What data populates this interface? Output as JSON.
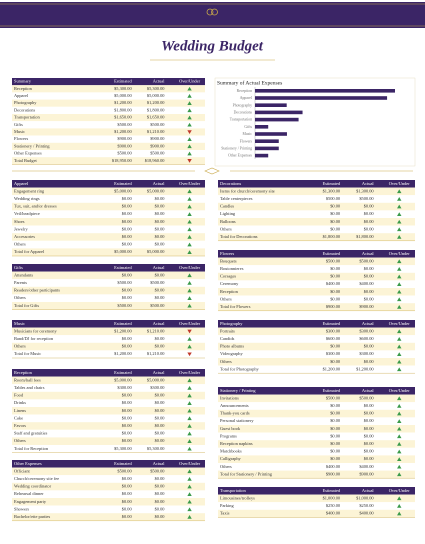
{
  "title": "Wedding Budget",
  "summary": {
    "columns": [
      "Summary",
      "Estimated",
      "Actual",
      "Over/Under"
    ],
    "rows": [
      [
        "Reception",
        "$5,300.00",
        "$5,300.00"
      ],
      [
        "Apparel",
        "$5,000.00",
        "$5,000.00"
      ],
      [
        "Photography",
        "$1,200.00",
        "$1,200.00"
      ],
      [
        "Decorations",
        "$1,800.00",
        "$1,800.00"
      ],
      [
        "Transportation",
        "$1,650.00",
        "$1,650.00"
      ],
      [
        "Gifts",
        "$500.00",
        "$500.00"
      ],
      [
        "Music",
        "$1,200.00",
        "$1,210.00"
      ],
      [
        "Flowers",
        "$900.00",
        "$900.00"
      ],
      [
        "Stationery / Printing",
        "$900.00",
        "$900.00"
      ],
      [
        "Other Expenses",
        "$500.00",
        "$500.00"
      ]
    ],
    "total": [
      "Total Budget",
      "$18,950.00",
      "$18,960.00"
    ]
  },
  "chart": {
    "title": "Summary of Actual Expenses"
  },
  "sections": [
    {
      "columns": [
        "Apparel",
        "Estimated",
        "Actual",
        "Over/Under"
      ],
      "rows": [
        [
          "Engagement ring",
          "$5,000.00",
          "$5,000.00"
        ],
        [
          "Wedding rings",
          "$0.00",
          "$0.00"
        ],
        [
          "Tux, suit, and/or dresses",
          "$0.00",
          "$0.00"
        ],
        [
          "Veil/headpiece",
          "$0.00",
          "$0.00"
        ],
        [
          "Shoes",
          "$0.00",
          "$0.00"
        ],
        [
          "Jewelry",
          "$0.00",
          "$0.00"
        ],
        [
          "Accessories",
          "$0.00",
          "$0.00"
        ],
        [
          "Others",
          "$0.00",
          "$0.00"
        ]
      ],
      "total": [
        "Total for Apparel",
        "$5,000.00",
        "$5,000.00"
      ]
    },
    {
      "columns": [
        "Gifts",
        "Estimated",
        "Actual",
        "Over/Under"
      ],
      "rows": [
        [
          "Attendants",
          "$0.00",
          "$0.00"
        ],
        [
          "Parents",
          "$500.00",
          "$500.00"
        ],
        [
          "Readers/other participants",
          "$0.00",
          "$0.00"
        ],
        [
          "Others",
          "$0.00",
          "$0.00"
        ]
      ],
      "total": [
        "Total for Gifts",
        "$500.00",
        "$500.00"
      ]
    },
    {
      "columns": [
        "Music",
        "Estimated",
        "Actual",
        "Over/Under"
      ],
      "rows": [
        [
          "Musicians for ceremony",
          "$1,200.00",
          "$1,210.00"
        ],
        [
          "Band/DJ for reception",
          "$0.00",
          "$0.00"
        ],
        [
          "Others",
          "$0.00",
          "$0.00"
        ]
      ],
      "total": [
        "Total for Music",
        "$1,200.00",
        "$1,210.00"
      ]
    },
    {
      "columns": [
        "Reception",
        "Estimated",
        "Actual",
        "Over/Under"
      ],
      "rows": [
        [
          "Room/hall fees",
          "$5,000.00",
          "$5,000.00"
        ],
        [
          "Tables and chairs",
          "$300.00",
          "$300.00"
        ],
        [
          "Food",
          "$0.00",
          "$0.00"
        ],
        [
          "Drinks",
          "$0.00",
          "$0.00"
        ],
        [
          "Linens",
          "$0.00",
          "$0.00"
        ],
        [
          "Cake",
          "$0.00",
          "$0.00"
        ],
        [
          "Favors",
          "$0.00",
          "$0.00"
        ],
        [
          "Staff and gratuities",
          "$0.00",
          "$0.00"
        ],
        [
          "Others",
          "$0.00",
          "$0.00"
        ]
      ],
      "total": [
        "Total for Reception",
        "$5,300.00",
        "$5,300.00"
      ]
    },
    {
      "columns": [
        "Other Expenses",
        "Estimated",
        "Actual",
        "Over/Under"
      ],
      "rows": [
        [
          "Officiant",
          "$500.00",
          "$500.00"
        ],
        [
          "Church/ceremony site fee",
          "$0.00",
          "$0.00"
        ],
        [
          "Wedding coordinator",
          "$0.00",
          "$0.00"
        ],
        [
          "Rehearsal dinner",
          "$0.00",
          "$0.00"
        ],
        [
          "Engagement party",
          "$0.00",
          "$0.00"
        ],
        [
          "Showers",
          "$0.00",
          "$0.00"
        ],
        [
          "Bachelor/ette parties",
          "$0.00",
          "$0.00"
        ]
      ]
    },
    {
      "columns": [
        "Decorations",
        "Estimated",
        "Actual",
        "Over/Under"
      ],
      "rows": [
        [
          "Items for church/ceremony site",
          "$1,300.00",
          "$1,300.00"
        ],
        [
          "Table centerpieces",
          "$500.00",
          "$500.00"
        ],
        [
          "Candles",
          "$0.00",
          "$0.00"
        ],
        [
          "Lighting",
          "$0.00",
          "$0.00"
        ],
        [
          "Balloons",
          "$0.00",
          "$0.00"
        ],
        [
          "Others",
          "$0.00",
          "$0.00"
        ]
      ],
      "total": [
        "Total for Decorations",
        "$1,800.00",
        "$1,800.00"
      ]
    },
    {
      "columns": [
        "Flowers",
        "Estimated",
        "Actual",
        "Over/Under"
      ],
      "rows": [
        [
          "Bouquets",
          "$500.00",
          "$500.00"
        ],
        [
          "Boutonnieres",
          "$0.00",
          "$0.00"
        ],
        [
          "Corsages",
          "$0.00",
          "$0.00"
        ],
        [
          "Ceremony",
          "$400.00",
          "$400.00"
        ],
        [
          "Reception",
          "$0.00",
          "$0.00"
        ],
        [
          "Others",
          "$0.00",
          "$0.00"
        ]
      ],
      "total": [
        "Total for Flowers",
        "$900.00",
        "$900.00"
      ]
    },
    {
      "columns": [
        "Photography",
        "Estimated",
        "Actual",
        "Over/Under"
      ],
      "rows": [
        [
          "Portraits",
          "$300.00",
          "$300.00"
        ],
        [
          "Candids",
          "$600.00",
          "$600.00"
        ],
        [
          "Photo albums",
          "$0.00",
          "$0.00"
        ],
        [
          "Videography",
          "$300.00",
          "$300.00"
        ],
        [
          "Others",
          "$0.00",
          "$0.00"
        ]
      ],
      "total": [
        "Total for Photography",
        "$1,200.00",
        "$1,200.00"
      ]
    },
    {
      "columns": [
        "Stationery / Printing",
        "Estimated",
        "Actual",
        "Over/Under"
      ],
      "rows": [
        [
          "Invitations",
          "$500.00",
          "$500.00"
        ],
        [
          "Announcements",
          "$0.00",
          "$0.00"
        ],
        [
          "Thank-you cards",
          "$0.00",
          "$0.00"
        ],
        [
          "Personal stationery",
          "$0.00",
          "$0.00"
        ],
        [
          "Guest book",
          "$0.00",
          "$0.00"
        ],
        [
          "Programs",
          "$0.00",
          "$0.00"
        ],
        [
          "Reception napkins",
          "$0.00",
          "$0.00"
        ],
        [
          "Matchbooks",
          "$0.00",
          "$0.00"
        ],
        [
          "Calligraphy",
          "$0.00",
          "$0.00"
        ],
        [
          "Others",
          "$400.00",
          "$400.00"
        ]
      ],
      "total": [
        "Total for Stationery / Printing",
        "$900.00",
        "$900.00"
      ]
    },
    {
      "columns": [
        "Transportation",
        "Estimated",
        "Actual",
        "Over/Under"
      ],
      "rows": [
        [
          "Limousines/trolleys",
          "$1,000.00",
          "$1,000.00"
        ],
        [
          "Parking",
          "$250.00",
          "$250.00"
        ],
        [
          "Taxis",
          "$400.00",
          "$400.00"
        ]
      ]
    }
  ]
}
